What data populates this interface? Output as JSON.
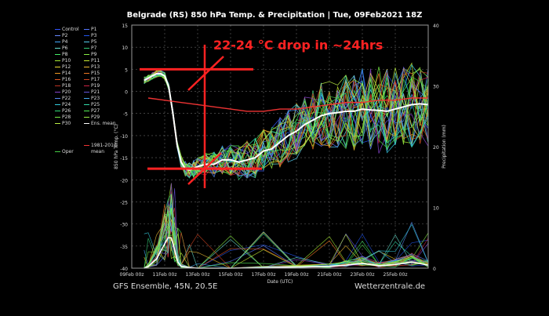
{
  "title": "Belgrade  (RS)  850 hPa Temp. & Precipitation | Tue, 09Feb2021 18Z",
  "footer_left": "GFS Ensemble, 45N, 20.5E",
  "footer_right": "Wetterzentrale.de",
  "legend": [
    {
      "label": "Control",
      "color": "#3355ff"
    },
    {
      "label": "P1",
      "color": "#5577ff"
    },
    {
      "label": "P2",
      "color": "#6688ff"
    },
    {
      "label": "P3",
      "color": "#2255ee"
    },
    {
      "label": "P4",
      "color": "#44aaff"
    },
    {
      "label": "P5",
      "color": "#55ccee"
    },
    {
      "label": "P6",
      "color": "#66ddcc"
    },
    {
      "label": "P7",
      "color": "#33cc77"
    },
    {
      "label": "P8",
      "color": "#44ee66"
    },
    {
      "label": "P9",
      "color": "#88ee44"
    },
    {
      "label": "P10",
      "color": "#aaee33"
    },
    {
      "label": "P11",
      "color": "#ccee33"
    },
    {
      "label": "P12",
      "color": "#eedd33"
    },
    {
      "label": "P13",
      "color": "#eebb33"
    },
    {
      "label": "P14",
      "color": "#ee9922"
    },
    {
      "label": "P15",
      "color": "#ee7722"
    },
    {
      "label": "P16",
      "color": "#dd5522"
    },
    {
      "label": "P17",
      "color": "#cc4422"
    },
    {
      "label": "P18",
      "color": "#bb3322"
    },
    {
      "label": "P19",
      "color": "#cc2244"
    },
    {
      "label": "P20",
      "color": "#8844cc"
    },
    {
      "label": "P21",
      "color": "#6655dd"
    },
    {
      "label": "P22",
      "color": "#5588ee"
    },
    {
      "label": "P23",
      "color": "#44aaee"
    },
    {
      "label": "P24",
      "color": "#33ccdd"
    },
    {
      "label": "P25",
      "color": "#33ddaa"
    },
    {
      "label": "P26",
      "color": "#33dd77"
    },
    {
      "label": "P27",
      "color": "#55ee55"
    },
    {
      "label": "P28",
      "color": "#77ee44"
    },
    {
      "label": "P29",
      "color": "#99ee44"
    },
    {
      "label": "P30",
      "color": "#bbee44"
    },
    {
      "label": "Ens. mean",
      "color": "#ffffff"
    },
    {
      "label": "1981-2010\nmean",
      "color": "#ee3333"
    },
    {
      "label": "Oper",
      "color": "#44cc44"
    }
  ],
  "annotation": "22-24 °C drop in ~24hrs",
  "colors": {
    "annotation": "#ff2222",
    "climate": "#ee3333",
    "mean": "#ffffff",
    "grid": "#666666"
  },
  "chart_data": {
    "type": "line",
    "xlabel": "Date (UTC)",
    "ylabel": "850 hPa Temp. (°C)",
    "y2label": "Precipitation (mm)",
    "ylim": [
      -40,
      15
    ],
    "y2lim": [
      0,
      40
    ],
    "yticks": [
      15,
      10,
      5,
      0,
      -5,
      -10,
      -15,
      -20,
      -25,
      -30,
      -35,
      -40
    ],
    "y2ticks": [
      40,
      30,
      20,
      10,
      0
    ],
    "xlim": [
      0,
      18
    ],
    "xticks": [
      {
        "x": 0,
        "label": "09Feb 00z"
      },
      {
        "x": 2,
        "label": "11Feb 00z"
      },
      {
        "x": 4,
        "label": "13Feb 00z"
      },
      {
        "x": 6,
        "label": "15Feb 00z"
      },
      {
        "x": 8,
        "label": "17Feb 00z"
      },
      {
        "x": 10,
        "label": "19Feb 00z"
      },
      {
        "x": 12,
        "label": "21Feb 00z"
      },
      {
        "x": 14,
        "label": "23Feb 00z"
      },
      {
        "x": 16,
        "label": "25Feb 00z"
      }
    ],
    "grid": true,
    "series": [
      {
        "name": "Ens. mean",
        "color": "#ffffff",
        "x": [
          0.75,
          1,
          1.25,
          1.5,
          1.75,
          2,
          2.25,
          2.5,
          2.75,
          3,
          3.25,
          3.5,
          3.75,
          4,
          4.5,
          5,
          5.5,
          6,
          6.5,
          7,
          7.5,
          8,
          8.5,
          9,
          9.5,
          10,
          10.5,
          11,
          11.5,
          12,
          12.5,
          13,
          13.5,
          14,
          14.5,
          15,
          15.5,
          16,
          16.5,
          17,
          17.5,
          18
        ],
        "y": [
          2.5,
          3,
          3.5,
          4,
          4,
          3.5,
          1,
          -5,
          -12,
          -16,
          -17.5,
          -17.8,
          -17.5,
          -17,
          -16.5,
          -16.5,
          -15.5,
          -15.5,
          -16,
          -15.5,
          -15,
          -13.5,
          -13,
          -11.5,
          -10,
          -9,
          -7.5,
          -6.5,
          -5.5,
          -5,
          -4.8,
          -4.5,
          -4.5,
          -4,
          -4.2,
          -4.3,
          -4.5,
          -4,
          -3.5,
          -3,
          -2.8,
          -3
        ]
      },
      {
        "name": "1981-2010\nmean",
        "color": "#ee3333",
        "x": [
          1,
          2,
          3,
          4,
          5,
          6,
          7,
          8,
          9,
          10,
          11,
          12,
          13,
          14,
          15,
          16,
          17,
          18
        ],
        "y": [
          -1.5,
          -2,
          -2.5,
          -3,
          -3.5,
          -4,
          -4.5,
          -4.5,
          -4,
          -4,
          -3.5,
          -3,
          -2.5,
          -2.5,
          -2,
          -2,
          -1.5,
          -1.5
        ]
      }
    ],
    "precip_mean": {
      "x": [
        0.75,
        1,
        1.5,
        2,
        2.2,
        2.4,
        2.6,
        2.8,
        3,
        3.5,
        4,
        6,
        8,
        10,
        12,
        13,
        14,
        15,
        16,
        17,
        18
      ],
      "y": [
        0,
        0.3,
        1.5,
        4,
        5,
        5,
        3,
        1,
        0.3,
        0.1,
        0,
        0,
        0.1,
        0.2,
        0.3,
        0.5,
        0.8,
        0.4,
        0.6,
        1,
        0.5
      ]
    }
  }
}
